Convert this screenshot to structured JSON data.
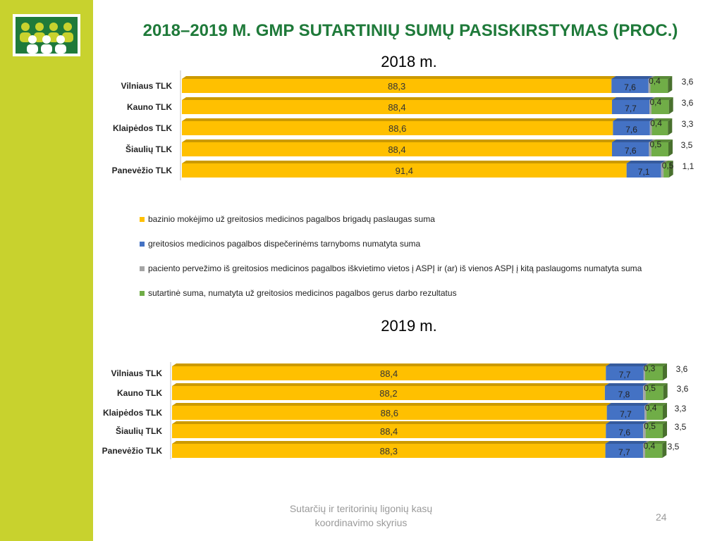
{
  "slide": {
    "title": "2018–2019 M. GMP SUTARTINIŲ SUMŲ PASISKIRSTYMAS (PROC.)",
    "footer_line1": "Sutarčių ir teritorinių ligonių kasų",
    "footer_line2": "koordinavimo skyrius",
    "page_number": "24"
  },
  "colors": {
    "base": "#ffc000",
    "dispatch": "#4472c4",
    "transfer": "#a5a5a5",
    "result": "#70ad47",
    "sidebar": "#c8d22e",
    "title": "#1f7a3a"
  },
  "legend": [
    {
      "label": "bazinio mokėjimo už greitosios medicinos pagalbos brigadų paslaugas suma",
      "color": "#ffc000"
    },
    {
      "label": "greitosios medicinos pagalbos dispečerinėms tarnyboms numatyta suma",
      "color": "#4472c4"
    },
    {
      "label": "paciento pervežimo iš greitosios medicinos pagalbos iškvietimo vietos į ASPĮ ir (ar) iš vienos ASPĮ į kitą  paslaugoms numatyta suma",
      "color": "#a5a5a5"
    },
    {
      "label": "sutartinė suma, numatyta už greitosios medicinos pagalbos gerus darbo rezultatus",
      "color": "#70ad47"
    }
  ],
  "chart_data": [
    {
      "type": "bar",
      "orientation": "horizontal",
      "stacked": true,
      "title": "2018 m.",
      "categories": [
        "Vilniaus TLK",
        "Kauno TLK",
        "Klaipėdos TLK",
        "Šiaulių TLK",
        "Panevėžio TLK"
      ],
      "series": [
        {
          "values": [
            88.3,
            88.4,
            88.6,
            88.4,
            91.4
          ],
          "labels": [
            "88,3",
            "88,4",
            "88,6",
            "88,4",
            "91,4"
          ],
          "color": "#ffc000"
        },
        {
          "values": [
            7.6,
            7.7,
            7.6,
            7.6,
            7.1
          ],
          "labels": [
            "7,6",
            "7,7",
            "7,6",
            "7,6",
            "7,1"
          ],
          "color": "#4472c4"
        },
        {
          "values": [
            0.4,
            0.4,
            0.4,
            0.5,
            0.5
          ],
          "labels": [
            "0,4",
            "0,4",
            "0,4",
            "0,5",
            "0,5"
          ],
          "color": "#a5a5a5"
        },
        {
          "values": [
            3.6,
            3.6,
            3.3,
            3.5,
            1.1
          ],
          "labels": [
            "3,6",
            "3,6",
            "3,3",
            "3,5",
            "1,1"
          ],
          "color": "#70ad47"
        }
      ],
      "xlim": [
        0,
        100
      ]
    },
    {
      "type": "bar",
      "orientation": "horizontal",
      "stacked": true,
      "title": "2019 m.",
      "categories": [
        "Vilniaus TLK",
        "Kauno TLK",
        "Klaipėdos TLK",
        "Šiaulių  TLK",
        "Panevėžio TLK"
      ],
      "series": [
        {
          "values": [
            88.4,
            88.2,
            88.6,
            88.4,
            88.3
          ],
          "labels": [
            "88,4",
            "88,2",
            "88,6",
            "88,4",
            "88,3"
          ],
          "color": "#ffc000"
        },
        {
          "values": [
            7.7,
            7.8,
            7.7,
            7.6,
            7.7
          ],
          "labels": [
            "7,7",
            "7,8",
            "7,7",
            "7,6",
            "7,7"
          ],
          "color": "#4472c4"
        },
        {
          "values": [
            0.3,
            0.5,
            0.4,
            0.5,
            0.4
          ],
          "labels": [
            "0,3",
            "0,5",
            "0,4",
            "0,5",
            "0,4"
          ],
          "color": "#a5a5a5"
        },
        {
          "values": [
            3.6,
            3.6,
            3.3,
            3.5,
            3.5
          ],
          "labels": [
            "3,6",
            "3,6",
            "3,3",
            "3,5",
            "3,5"
          ],
          "color": "#70ad47"
        }
      ],
      "xlim": [
        0,
        100
      ]
    }
  ]
}
